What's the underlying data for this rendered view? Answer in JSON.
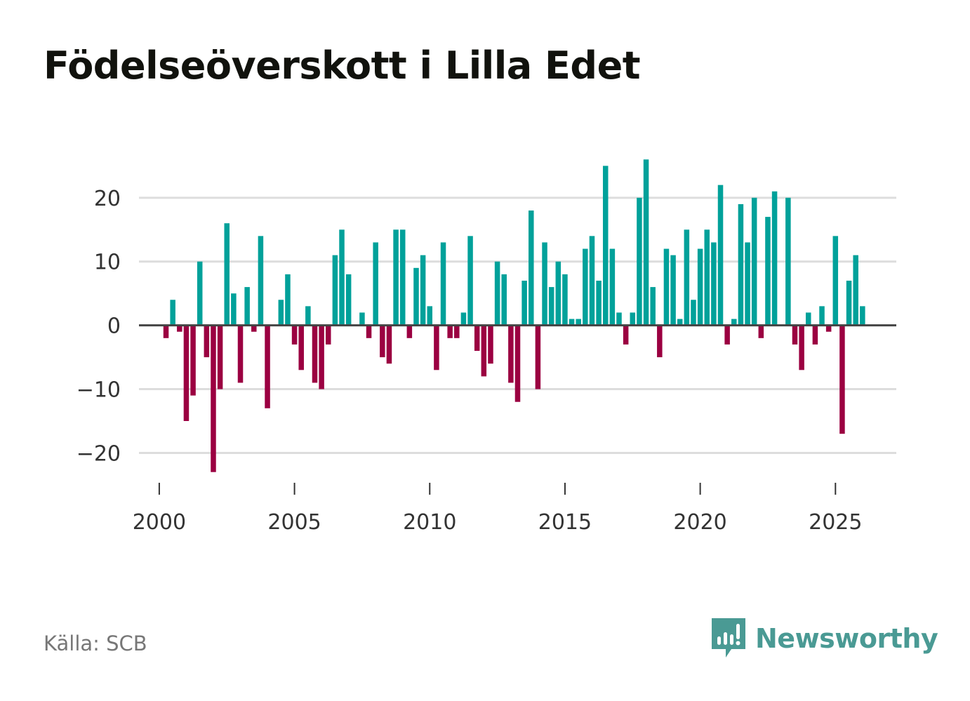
{
  "title": "Födelseöverskott i Lilla Edet",
  "source": "Källa: SCB",
  "brand": {
    "name": "Newsworthy",
    "icon": "newsworthy-logo-icon",
    "color": "#4a9a94"
  },
  "colors": {
    "positive": "#00a19a",
    "negative": "#9b0041",
    "grid": "#dddddd",
    "zero_line": "#444444"
  },
  "chart_data": {
    "type": "bar",
    "title": "Födelseöverskott i Lilla Edet",
    "xlabel": "",
    "ylabel": "",
    "x_unit": "quarter",
    "x_start": 2000.25,
    "x_step": 0.25,
    "ylim": [
      -26,
      29
    ],
    "xlim": [
      1999.25,
      2027.25
    ],
    "yticks": [
      20,
      10,
      0,
      -10,
      -20
    ],
    "ytick_labels": [
      "20",
      "10",
      "0",
      "−10",
      "−20"
    ],
    "xticks": [
      2000,
      2005,
      2010,
      2015,
      2020,
      2025
    ],
    "xtick_labels": [
      "2000",
      "2005",
      "2010",
      "2015",
      "2020",
      "2025"
    ],
    "grid": true,
    "values": [
      -2,
      4,
      -1,
      -15,
      -11,
      10,
      -5,
      -23,
      -10,
      16,
      5,
      -9,
      6,
      -1,
      14,
      -13,
      0,
      4,
      8,
      -3,
      -7,
      3,
      -9,
      -10,
      -3,
      11,
      15,
      8,
      0,
      2,
      -2,
      13,
      -5,
      -6,
      15,
      15,
      -2,
      9,
      11,
      3,
      -7,
      13,
      -2,
      -2,
      2,
      14,
      -4,
      -8,
      -6,
      10,
      8,
      -9,
      -12,
      7,
      18,
      -10,
      13,
      6,
      10,
      8,
      1,
      1,
      12,
      14,
      7,
      25,
      12,
      2,
      -3,
      2,
      20,
      26,
      6,
      -5,
      12,
      11,
      1,
      15,
      4,
      12,
      15,
      13,
      22,
      -3,
      1,
      19,
      13,
      20,
      -2,
      17,
      21,
      0,
      20,
      -3,
      -7,
      2,
      -3,
      3,
      -1,
      14,
      -17,
      7,
      11,
      3
    ]
  }
}
